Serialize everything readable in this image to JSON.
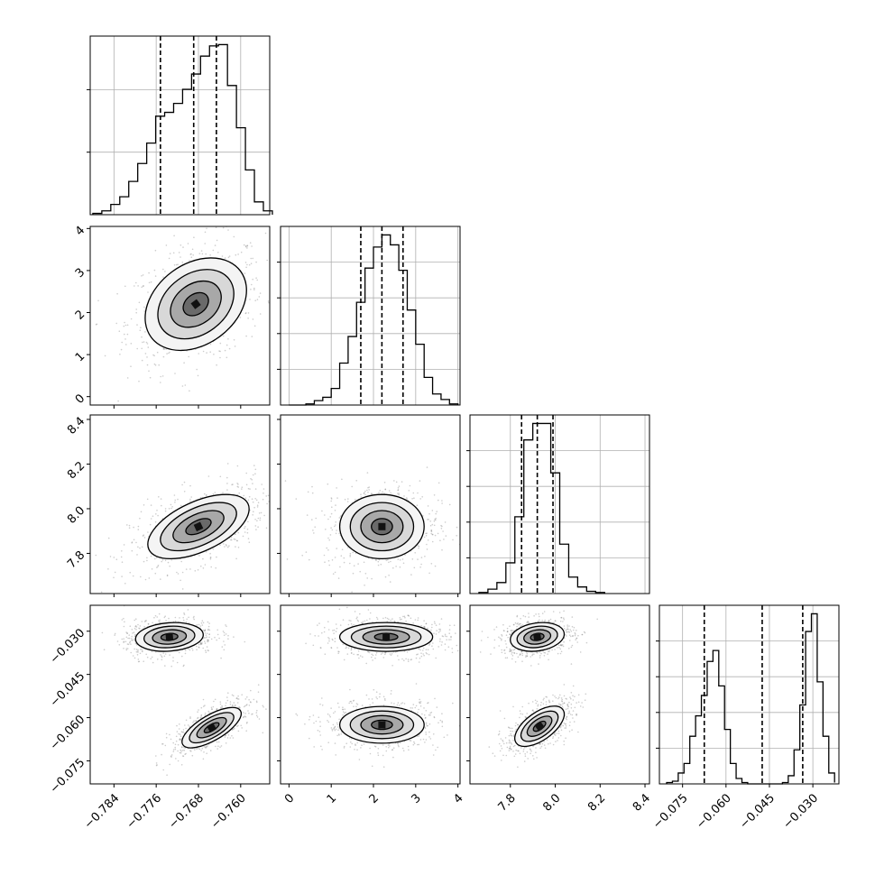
{
  "chart_data": {
    "type": "corner",
    "grid": true,
    "parameters": [
      {
        "id": "p0",
        "range": [
          -0.7885,
          -0.7545
        ],
        "ticks": [
          -0.784,
          -0.776,
          -0.768,
          -0.76
        ],
        "tick_labels": [
          "−0.784",
          "−0.776",
          "−0.768",
          "−0.760"
        ],
        "quantiles": [
          -0.7752,
          -0.7689,
          -0.7646
        ],
        "hist": {
          "bin_edges": [
            -0.788,
            -0.7863,
            -0.7846,
            -0.7829,
            -0.7812,
            -0.7795,
            -0.7778,
            -0.7761,
            -0.7744,
            -0.7727,
            -0.771,
            -0.7693,
            -0.7676,
            -0.7659,
            -0.7642,
            -0.7625,
            -0.7608,
            -0.7591,
            -0.7574,
            -0.7557,
            -0.754
          ],
          "counts": [
            1,
            3,
            8,
            14,
            26,
            40,
            56,
            77,
            80,
            87,
            98,
            110,
            124,
            132,
            133,
            101,
            68,
            35,
            10,
            3
          ]
        },
        "ytick_fractions": [
          0.35,
          0.7
        ]
      },
      {
        "id": "p1",
        "range": [
          -0.2,
          4.05
        ],
        "ticks": [
          0,
          1,
          2,
          3,
          4
        ],
        "tick_labels": [
          "0",
          "1",
          "2",
          "3",
          "4"
        ],
        "quantiles": [
          1.7,
          2.2,
          2.7
        ],
        "hist": {
          "bin_edges": [
            0.0,
            0.2,
            0.4,
            0.6,
            0.8,
            1.0,
            1.2,
            1.4,
            1.6,
            1.8,
            2.0,
            2.2,
            2.4,
            2.6,
            2.8,
            3.0,
            3.2,
            3.4,
            3.6,
            3.8,
            4.0
          ],
          "counts": [
            0,
            0,
            1,
            4,
            7,
            15,
            38,
            62,
            93,
            124,
            143,
            154,
            145,
            122,
            86,
            55,
            25,
            10,
            5,
            1
          ]
        },
        "ytick_fractions": [
          0.2,
          0.4,
          0.6,
          0.8
        ]
      },
      {
        "id": "p2",
        "range": [
          7.62,
          8.42
        ],
        "ticks": [
          7.8,
          8.0,
          8.2,
          8.4
        ],
        "tick_labels": [
          "7.8",
          "8.0",
          "8.2",
          "8.4"
        ],
        "quantiles": [
          7.85,
          7.92,
          7.99
        ],
        "hist": {
          "bin_edges": [
            7.66,
            7.7,
            7.74,
            7.78,
            7.82,
            7.86,
            7.9,
            7.94,
            7.98,
            8.02,
            8.06,
            8.1,
            8.14,
            8.18,
            8.22
          ],
          "counts": [
            1,
            4,
            10,
            28,
            70,
            140,
            155,
            155,
            110,
            45,
            15,
            6,
            2,
            1
          ]
        },
        "ytick_fractions": [
          0.2,
          0.4,
          0.6,
          0.8
        ]
      },
      {
        "id": "p3",
        "range": [
          -0.083,
          -0.021
        ],
        "ticks": [
          -0.075,
          -0.06,
          -0.045,
          -0.03
        ],
        "tick_labels": [
          "−0.075",
          "−0.060",
          "−0.045",
          "−0.030"
        ],
        "quantiles": [
          -0.0675,
          -0.0475,
          -0.0335
        ],
        "hist": {
          "bin_edges": [
            -0.0805,
            -0.0785,
            -0.0765,
            -0.0745,
            -0.0725,
            -0.0705,
            -0.0685,
            -0.0665,
            -0.0645,
            -0.0625,
            -0.0605,
            -0.0585,
            -0.0565,
            -0.0545,
            -0.0525,
            -0.0505,
            -0.0485,
            -0.0465,
            -0.0445,
            -0.0425,
            -0.0405,
            -0.0385,
            -0.0365,
            -0.0345,
            -0.0325,
            -0.0305,
            -0.0285,
            -0.0265,
            -0.0245,
            -0.0225
          ],
          "counts": [
            1,
            2,
            8,
            15,
            35,
            50,
            65,
            90,
            98,
            72,
            40,
            15,
            4,
            1,
            0,
            0,
            0,
            0,
            0,
            0,
            1,
            6,
            25,
            58,
            112,
            125,
            75,
            35,
            8,
            1
          ]
        },
        "ytick_fractions": [
          0.2,
          0.4,
          0.6,
          0.8
        ]
      }
    ],
    "pairs": [
      {
        "row": 1,
        "col": 0,
        "modes": [
          {
            "mx": -0.7685,
            "my": 2.2,
            "sx": 0.0048,
            "sy": 0.55,
            "rho": 0.3,
            "w": 1
          }
        ]
      },
      {
        "row": 2,
        "col": 0,
        "modes": [
          {
            "mx": -0.768,
            "my": 7.92,
            "sx": 0.0048,
            "sy": 0.072,
            "rho": 0.55,
            "w": 1
          }
        ]
      },
      {
        "row": 2,
        "col": 1,
        "modes": [
          {
            "mx": 2.2,
            "my": 7.92,
            "sx": 0.5,
            "sy": 0.072,
            "rho": 0.0,
            "w": 1
          }
        ]
      },
      {
        "row": 3,
        "col": 0,
        "modes": [
          {
            "mx": -0.7735,
            "my": -0.032,
            "sx": 0.0032,
            "sy": 0.0025,
            "rho": 0.15,
            "w": 1
          },
          {
            "mx": -0.7655,
            "my": -0.0635,
            "sx": 0.0028,
            "sy": 0.0035,
            "rho": 0.7,
            "w": 1
          }
        ]
      },
      {
        "row": 3,
        "col": 1,
        "modes": [
          {
            "mx": 2.3,
            "my": -0.032,
            "sx": 0.55,
            "sy": 0.0025,
            "rho": 0.0,
            "w": 1
          },
          {
            "mx": 2.2,
            "my": -0.0625,
            "sx": 0.5,
            "sy": 0.0032,
            "rho": 0.0,
            "w": 1
          }
        ]
      },
      {
        "row": 3,
        "col": 2,
        "modes": [
          {
            "mx": 7.92,
            "my": -0.032,
            "sx": 0.06,
            "sy": 0.0025,
            "rho": 0.2,
            "w": 1
          },
          {
            "mx": 7.93,
            "my": -0.063,
            "sx": 0.055,
            "sy": 0.0035,
            "rho": 0.6,
            "w": 1
          }
        ]
      }
    ]
  }
}
